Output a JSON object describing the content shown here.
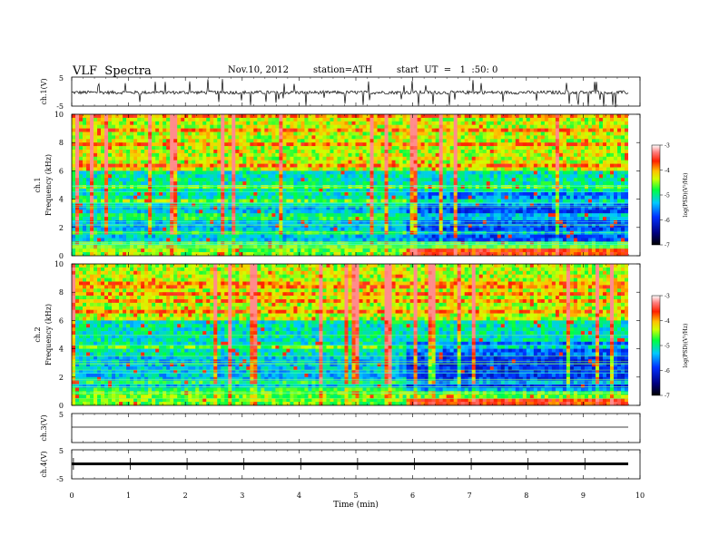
{
  "header": {
    "title": "VLF  Spectra",
    "date": "Nov.10, 2012",
    "station": "station=ATH",
    "start": "start  UT  =   1  :50: 0"
  },
  "chart_data": [
    {
      "type": "line",
      "panel": "ch1-waveform",
      "ylabel": "ch.1(V)",
      "ylim": [
        -5,
        5
      ],
      "yticks": [
        "5",
        "-5"
      ],
      "xlim": [
        0,
        10
      ]
    },
    {
      "type": "heatmap",
      "panel": "ch1-spectrogram",
      "ylabel": "ch.1\nFrequency  (kHz)",
      "ylabel_channel": "ch.1",
      "ylabel_quantity": "Frequency  (kHz)",
      "ylim": [
        0,
        10
      ],
      "yticks": [
        "0",
        "2",
        "4",
        "6",
        "8",
        "10"
      ],
      "xlim": [
        0,
        10
      ],
      "colorbar": {
        "label": "log(PSD)(V²/Hz)",
        "range": [
          -7,
          -3
        ],
        "ticks": [
          "-3",
          "-4",
          "-5",
          "-6",
          "-7"
        ]
      }
    },
    {
      "type": "heatmap",
      "panel": "ch2-spectrogram",
      "ylabel": "ch.2\nFrequency  (kHz)",
      "ylabel_channel": "ch.2",
      "ylabel_quantity": "Frequency  (kHz)",
      "ylim": [
        0,
        10
      ],
      "yticks": [
        "0",
        "2",
        "4",
        "6",
        "8",
        "10"
      ],
      "xlim": [
        0,
        10
      ],
      "colorbar": {
        "label": "log(PSD)(V²/Hz)",
        "range": [
          -7,
          -3
        ],
        "ticks": [
          "-3",
          "-4",
          "-5",
          "-6",
          "-7"
        ]
      }
    },
    {
      "type": "line",
      "panel": "ch3-waveform",
      "ylabel": "ch.3(V)",
      "ylim": [
        -5,
        5
      ],
      "yticks": [
        "5"
      ],
      "xlim": [
        0,
        10
      ]
    },
    {
      "type": "line",
      "panel": "ch4-waveform",
      "ylabel": "ch.4(V)",
      "ylim": [
        -5,
        5
      ],
      "yticks": [
        "5",
        "-5"
      ],
      "xlim": [
        0,
        10
      ],
      "xlabel": "Time  (min)",
      "xticks": [
        "0",
        "1",
        "2",
        "3",
        "4",
        "5",
        "6",
        "7",
        "8",
        "9",
        "10"
      ]
    }
  ]
}
